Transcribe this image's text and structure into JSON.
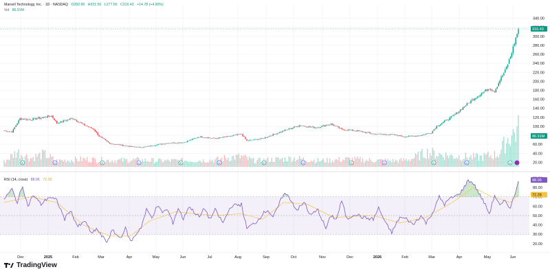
{
  "header": {
    "symbol_line": "Marvell Technology, Inc. · 1D · NASDAQ",
    "ohlc": [
      "O282.95",
      "H321.50",
      "L277.56",
      "C316.43",
      "+14.78 (+4.90%)"
    ],
    "vol_label": "Vol",
    "vol_value": "86.91M"
  },
  "rsi_header": {
    "label": "RSI (14, close)",
    "value1": "88.06",
    "value2": "72.28"
  },
  "branding": {
    "name": "TradingView"
  },
  "colors": {
    "up": "#089981",
    "down": "#f23645",
    "rsi": "#7e57c2",
    "rsi_ma": "#f5c542",
    "band": "#7e57c2"
  },
  "chart_data": [
    {
      "type": "candlestick",
      "title": "",
      "y_ticks": [
        "340.00",
        "320.00",
        "300.00",
        "280.00",
        "260.00",
        "240.00",
        "220.00",
        "200.00",
        "180.00",
        "160.00",
        "140.00",
        "120.00",
        "100.00",
        "80.00",
        "60.00",
        "40.00",
        "20.00"
      ],
      "ylim": [
        10,
        350
      ],
      "last_price": "316.43",
      "volume_label": "86.91M",
      "x_labels": [
        "Dec",
        "2025",
        "Feb",
        "Mar",
        "Apr",
        "May",
        "Jun",
        "Jul",
        "Aug",
        "Sep",
        "Oct",
        "Nov",
        "Dec",
        "2026",
        "Feb",
        "Mar",
        "Apr",
        "May",
        "Jun"
      ],
      "price_anchors": [
        [
          0,
          90
        ],
        [
          6,
          88
        ],
        [
          12,
          117
        ],
        [
          20,
          115
        ],
        [
          36,
          123
        ],
        [
          40,
          107
        ],
        [
          52,
          118
        ],
        [
          60,
          104
        ],
        [
          68,
          93
        ],
        [
          72,
          78
        ],
        [
          80,
          62
        ],
        [
          96,
          55
        ],
        [
          104,
          53
        ],
        [
          112,
          57
        ],
        [
          124,
          63
        ],
        [
          136,
          64
        ],
        [
          148,
          77
        ],
        [
          160,
          73
        ],
        [
          172,
          78
        ],
        [
          180,
          83
        ],
        [
          184,
          68
        ],
        [
          196,
          73
        ],
        [
          212,
          90
        ],
        [
          224,
          102
        ],
        [
          236,
          97
        ],
        [
          248,
          105
        ],
        [
          256,
          93
        ],
        [
          268,
          90
        ],
        [
          280,
          83
        ],
        [
          296,
          81
        ],
        [
          304,
          77
        ],
        [
          316,
          80
        ],
        [
          324,
          86
        ],
        [
          328,
          100
        ],
        [
          340,
          122
        ],
        [
          356,
          161
        ],
        [
          368,
          185
        ],
        [
          372,
          178
        ],
        [
          376,
          203
        ],
        [
          380,
          223
        ],
        [
          384,
          255
        ],
        [
          390,
          316
        ]
      ],
      "volume_anchors": [
        [
          0,
          12
        ],
        [
          10,
          35
        ],
        [
          20,
          20
        ],
        [
          30,
          30
        ],
        [
          40,
          14
        ],
        [
          60,
          18
        ],
        [
          80,
          15
        ],
        [
          100,
          16
        ],
        [
          120,
          14
        ],
        [
          140,
          15
        ],
        [
          160,
          16
        ],
        [
          170,
          22
        ],
        [
          180,
          24
        ],
        [
          190,
          14
        ],
        [
          200,
          16
        ],
        [
          220,
          20
        ],
        [
          240,
          14
        ],
        [
          260,
          18
        ],
        [
          280,
          15
        ],
        [
          300,
          14
        ],
        [
          310,
          20
        ],
        [
          320,
          34
        ],
        [
          340,
          25
        ],
        [
          360,
          22
        ],
        [
          375,
          30
        ],
        [
          383,
          70
        ],
        [
          390,
          87
        ]
      ]
    },
    {
      "type": "line",
      "title": "RSI (14, close)",
      "y_ticks": [
        "90.00",
        "80.00",
        "70.00",
        "60.00",
        "50.00",
        "40.00",
        "30.00",
        "20.00"
      ],
      "ylim": [
        14,
        94
      ],
      "bands": [
        30,
        70
      ],
      "midline": 50,
      "rsi_anchors": [
        [
          0,
          68
        ],
        [
          6,
          78
        ],
        [
          10,
          64
        ],
        [
          14,
          82
        ],
        [
          18,
          60
        ],
        [
          22,
          72
        ],
        [
          28,
          62
        ],
        [
          34,
          70
        ],
        [
          40,
          66
        ],
        [
          46,
          46
        ],
        [
          50,
          56
        ],
        [
          56,
          38
        ],
        [
          62,
          44
        ],
        [
          66,
          30
        ],
        [
          70,
          36
        ],
        [
          74,
          28
        ],
        [
          78,
          22
        ],
        [
          82,
          34
        ],
        [
          88,
          26
        ],
        [
          92,
          36
        ],
        [
          96,
          22
        ],
        [
          100,
          30
        ],
        [
          104,
          38
        ],
        [
          108,
          56
        ],
        [
          112,
          48
        ],
        [
          116,
          60
        ],
        [
          120,
          54
        ],
        [
          124,
          56
        ],
        [
          128,
          42
        ],
        [
          132,
          58
        ],
        [
          136,
          46
        ],
        [
          140,
          60
        ],
        [
          148,
          48
        ],
        [
          152,
          58
        ],
        [
          156,
          46
        ],
        [
          160,
          56
        ],
        [
          166,
          42
        ],
        [
          172,
          60
        ],
        [
          180,
          62
        ],
        [
          184,
          36
        ],
        [
          188,
          40
        ],
        [
          192,
          44
        ],
        [
          196,
          52
        ],
        [
          200,
          56
        ],
        [
          204,
          48
        ],
        [
          208,
          60
        ],
        [
          212,
          74
        ],
        [
          216,
          70
        ],
        [
          222,
          56
        ],
        [
          228,
          64
        ],
        [
          232,
          50
        ],
        [
          238,
          56
        ],
        [
          244,
          36
        ],
        [
          248,
          50
        ],
        [
          252,
          46
        ],
        [
          256,
          66
        ],
        [
          260,
          46
        ],
        [
          266,
          52
        ],
        [
          272,
          48
        ],
        [
          280,
          46
        ],
        [
          284,
          58
        ],
        [
          290,
          40
        ],
        [
          294,
          32
        ],
        [
          300,
          48
        ],
        [
          306,
          46
        ],
        [
          310,
          40
        ],
        [
          316,
          50
        ],
        [
          320,
          42
        ],
        [
          326,
          56
        ],
        [
          330,
          70
        ],
        [
          334,
          62
        ],
        [
          338,
          68
        ],
        [
          344,
          72
        ],
        [
          348,
          78
        ],
        [
          352,
          88
        ],
        [
          356,
          84
        ],
        [
          360,
          74
        ],
        [
          364,
          64
        ],
        [
          368,
          52
        ],
        [
          372,
          72
        ],
        [
          376,
          60
        ],
        [
          380,
          66
        ],
        [
          384,
          58
        ],
        [
          388,
          76
        ],
        [
          390,
          88
        ]
      ],
      "ma_anchors": [
        [
          0,
          64
        ],
        [
          20,
          70
        ],
        [
          40,
          64
        ],
        [
          60,
          40
        ],
        [
          80,
          28
        ],
        [
          96,
          28
        ],
        [
          110,
          44
        ],
        [
          130,
          54
        ],
        [
          160,
          50
        ],
        [
          180,
          52
        ],
        [
          196,
          46
        ],
        [
          212,
          64
        ],
        [
          230,
          62
        ],
        [
          250,
          48
        ],
        [
          280,
          50
        ],
        [
          300,
          42
        ],
        [
          320,
          48
        ],
        [
          340,
          64
        ],
        [
          356,
          80
        ],
        [
          370,
          70
        ],
        [
          384,
          64
        ],
        [
          390,
          72
        ]
      ]
    }
  ]
}
